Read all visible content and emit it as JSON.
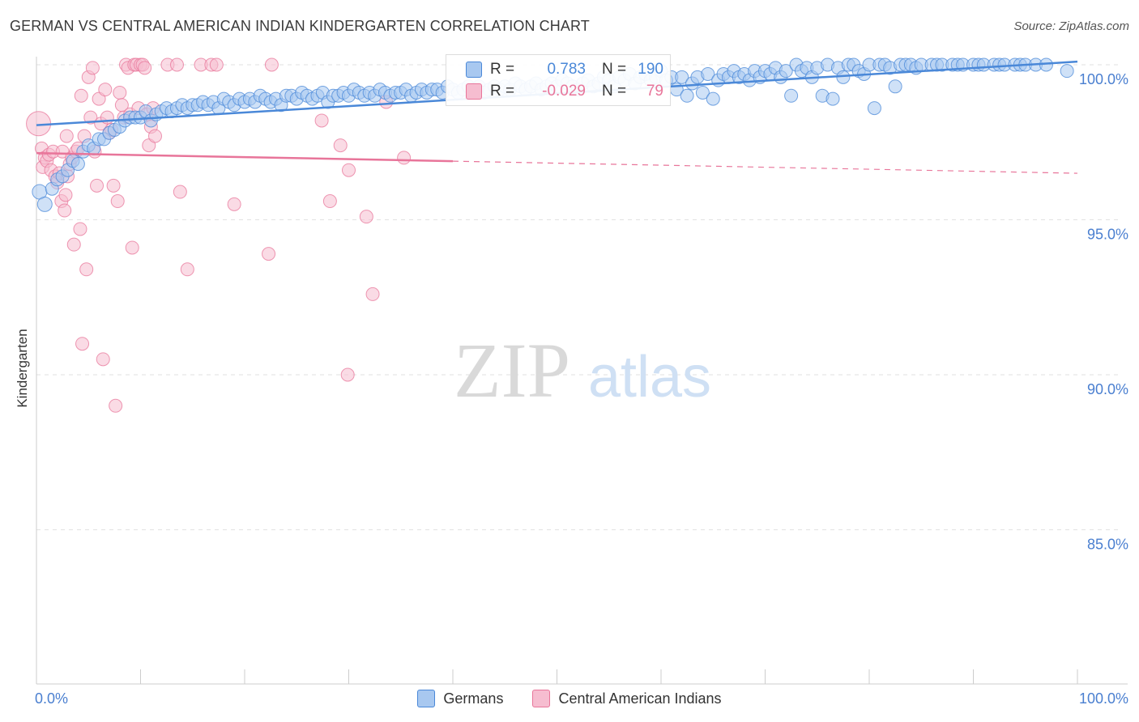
{
  "header": {
    "title": "GERMAN VS CENTRAL AMERICAN INDIAN KINDERGARTEN CORRELATION CHART",
    "source": "Source: ZipAtlas.com"
  },
  "watermark": {
    "zip": "ZIP",
    "atlas": "atlas"
  },
  "colors": {
    "blue": "#4a88d8",
    "blue_fill": "#a8c8f0",
    "pink": "#e8759a",
    "pink_fill": "#f6bdd0",
    "tick_label": "#4a7fd0",
    "grid": "#e2e2e2"
  },
  "stats": {
    "rows": [
      {
        "r_label": "R =",
        "r_value": "0.783",
        "n_label": "N =",
        "n_value": "190",
        "color": "#4a88d8"
      },
      {
        "r_label": "R =",
        "r_value": "-0.029",
        "n_label": "N =",
        "n_value": "79",
        "color": "#e8759a"
      }
    ]
  },
  "legend": {
    "items": [
      {
        "label": "Germans",
        "color": "#4a88d8"
      },
      {
        "label": "Central American Indians",
        "color": "#e8759a"
      }
    ]
  },
  "chart_data": {
    "type": "scatter",
    "title": "GERMAN VS CENTRAL AMERICAN INDIAN KINDERGARTEN CORRELATION CHART",
    "xlabel": "",
    "ylabel": "Kindergarten",
    "xlim": [
      0,
      100
    ],
    "ylim": [
      80.5,
      100.7
    ],
    "x_tick_labels": [
      "0.0%",
      "100.0%"
    ],
    "y_ticks": [
      100,
      95,
      90,
      85
    ],
    "y_tick_labels": [
      "100.0%",
      "95.0%",
      "90.0%",
      "85.0%"
    ],
    "grid": true,
    "legend_position": "bottom",
    "series": [
      {
        "name": "Germans",
        "color": "#4a88d8",
        "R": 0.783,
        "N": 190,
        "trend": {
          "x": [
            0,
            100
          ],
          "y": [
            98.05,
            100.1
          ],
          "dashed_from": null
        },
        "points": [
          [
            0.3,
            95.9
          ],
          [
            0.8,
            95.5
          ],
          [
            1.5,
            96.0
          ],
          [
            2.0,
            96.3
          ],
          [
            2.5,
            96.4
          ],
          [
            3.0,
            96.6
          ],
          [
            3.5,
            96.9
          ],
          [
            4.0,
            96.8
          ],
          [
            4.5,
            97.2
          ],
          [
            5.0,
            97.4
          ],
          [
            5.5,
            97.3
          ],
          [
            6.0,
            97.6
          ],
          [
            6.5,
            97.6
          ],
          [
            7.0,
            97.8
          ],
          [
            7.5,
            97.9
          ],
          [
            8.0,
            98.0
          ],
          [
            8.5,
            98.2
          ],
          [
            9.0,
            98.3
          ],
          [
            9.5,
            98.3
          ],
          [
            10.0,
            98.3
          ],
          [
            10.5,
            98.5
          ],
          [
            11.0,
            98.2
          ],
          [
            11.5,
            98.4
          ],
          [
            12.0,
            98.5
          ],
          [
            12.5,
            98.6
          ],
          [
            13.0,
            98.5
          ],
          [
            13.5,
            98.6
          ],
          [
            14.0,
            98.7
          ],
          [
            14.5,
            98.6
          ],
          [
            15.0,
            98.7
          ],
          [
            15.5,
            98.7
          ],
          [
            16.0,
            98.8
          ],
          [
            16.5,
            98.7
          ],
          [
            17.0,
            98.8
          ],
          [
            17.5,
            98.6
          ],
          [
            18.0,
            98.9
          ],
          [
            18.5,
            98.8
          ],
          [
            19.0,
            98.7
          ],
          [
            19.5,
            98.9
          ],
          [
            20.0,
            98.8
          ],
          [
            20.5,
            98.9
          ],
          [
            21.0,
            98.8
          ],
          [
            21.5,
            99.0
          ],
          [
            22.0,
            98.9
          ],
          [
            22.5,
            98.8
          ],
          [
            23.0,
            98.9
          ],
          [
            23.5,
            98.7
          ],
          [
            24.0,
            99.0
          ],
          [
            24.5,
            99.0
          ],
          [
            25.0,
            98.9
          ],
          [
            25.5,
            99.1
          ],
          [
            26.0,
            99.0
          ],
          [
            26.5,
            98.9
          ],
          [
            27.0,
            99.0
          ],
          [
            27.5,
            99.1
          ],
          [
            28.0,
            98.8
          ],
          [
            28.5,
            99.0
          ],
          [
            29.0,
            99.0
          ],
          [
            29.5,
            99.1
          ],
          [
            30.0,
            99.0
          ],
          [
            30.5,
            99.2
          ],
          [
            31.0,
            99.1
          ],
          [
            31.5,
            99.0
          ],
          [
            32.0,
            99.1
          ],
          [
            32.5,
            99.0
          ],
          [
            33.0,
            99.2
          ],
          [
            33.5,
            99.1
          ],
          [
            34.0,
            99.0
          ],
          [
            34.5,
            99.1
          ],
          [
            35.0,
            99.1
          ],
          [
            35.5,
            99.2
          ],
          [
            36.0,
            99.0
          ],
          [
            36.5,
            99.1
          ],
          [
            37.0,
            99.2
          ],
          [
            37.5,
            99.1
          ],
          [
            38.0,
            99.2
          ],
          [
            38.5,
            99.2
          ],
          [
            39.0,
            99.1
          ],
          [
            39.5,
            99.3
          ],
          [
            40.0,
            99.2
          ],
          [
            40.5,
            99.1
          ],
          [
            41.0,
            99.2
          ],
          [
            41.5,
            99.3
          ],
          [
            42.0,
            99.2
          ],
          [
            42.5,
            99.3
          ],
          [
            43.0,
            99.1
          ],
          [
            43.5,
            99.2
          ],
          [
            44.0,
            99.3
          ],
          [
            44.5,
            99.2
          ],
          [
            45.0,
            99.3
          ],
          [
            45.5,
            99.2
          ],
          [
            46.0,
            99.4
          ],
          [
            46.5,
            99.3
          ],
          [
            47.0,
            99.2
          ],
          [
            47.5,
            99.3
          ],
          [
            48.0,
            99.4
          ],
          [
            48.5,
            99.2
          ],
          [
            49.0,
            99.3
          ],
          [
            49.5,
            99.4
          ],
          [
            50.0,
            99.3
          ],
          [
            50.5,
            99.5
          ],
          [
            51.0,
            99.4
          ],
          [
            51.5,
            99.3
          ],
          [
            52.0,
            99.2
          ],
          [
            52.5,
            99.4
          ],
          [
            53.0,
            99.5
          ],
          [
            53.5,
            99.3
          ],
          [
            54.0,
            99.4
          ],
          [
            54.5,
            99.6
          ],
          [
            55.0,
            99.5
          ],
          [
            55.5,
            99.3
          ],
          [
            56.0,
            99.6
          ],
          [
            56.5,
            99.5
          ],
          [
            57.0,
            99.7
          ],
          [
            57.5,
            99.4
          ],
          [
            58.0,
            99.6
          ],
          [
            58.5,
            99.7
          ],
          [
            59.0,
            99.5
          ],
          [
            59.5,
            99.6
          ],
          [
            60.0,
            99.8
          ],
          [
            60.5,
            99.5
          ],
          [
            61.0,
            99.6
          ],
          [
            61.5,
            99.2
          ],
          [
            62.0,
            99.6
          ],
          [
            62.5,
            99.0
          ],
          [
            63.0,
            99.4
          ],
          [
            63.5,
            99.6
          ],
          [
            64.0,
            99.1
          ],
          [
            64.5,
            99.7
          ],
          [
            65.0,
            98.9
          ],
          [
            65.5,
            99.5
          ],
          [
            66.0,
            99.7
          ],
          [
            66.5,
            99.6
          ],
          [
            67.0,
            99.8
          ],
          [
            67.5,
            99.6
          ],
          [
            68.0,
            99.7
          ],
          [
            68.5,
            99.5
          ],
          [
            69.0,
            99.8
          ],
          [
            69.5,
            99.6
          ],
          [
            70.0,
            99.8
          ],
          [
            70.5,
            99.7
          ],
          [
            71.0,
            99.9
          ],
          [
            71.5,
            99.6
          ],
          [
            72.0,
            99.8
          ],
          [
            72.5,
            99.0
          ],
          [
            73.0,
            100.0
          ],
          [
            73.5,
            99.8
          ],
          [
            74.0,
            99.9
          ],
          [
            74.5,
            99.6
          ],
          [
            75.0,
            99.9
          ],
          [
            75.5,
            99.0
          ],
          [
            76.0,
            100.0
          ],
          [
            76.5,
            98.9
          ],
          [
            77.0,
            99.9
          ],
          [
            77.5,
            99.6
          ],
          [
            78.0,
            100.0
          ],
          [
            78.5,
            100.0
          ],
          [
            79.0,
            99.8
          ],
          [
            79.5,
            99.7
          ],
          [
            80.0,
            100.0
          ],
          [
            80.5,
            98.6
          ],
          [
            81.0,
            100.0
          ],
          [
            81.5,
            100.0
          ],
          [
            82.0,
            99.9
          ],
          [
            82.5,
            99.3
          ],
          [
            83.0,
            100.0
          ],
          [
            83.5,
            100.0
          ],
          [
            84.0,
            100.0
          ],
          [
            84.5,
            99.9
          ],
          [
            85.0,
            100.0
          ],
          [
            86.0,
            100.0
          ],
          [
            86.5,
            100.0
          ],
          [
            87.0,
            100.0
          ],
          [
            88.0,
            100.0
          ],
          [
            88.5,
            100.0
          ],
          [
            89.0,
            100.0
          ],
          [
            90.0,
            100.0
          ],
          [
            90.5,
            100.0
          ],
          [
            91.0,
            100.0
          ],
          [
            92.0,
            100.0
          ],
          [
            92.5,
            100.0
          ],
          [
            93.0,
            100.0
          ],
          [
            94.0,
            100.0
          ],
          [
            94.5,
            100.0
          ],
          [
            95.0,
            100.0
          ],
          [
            96.0,
            100.0
          ],
          [
            97.0,
            100.0
          ],
          [
            99.0,
            99.8
          ]
        ]
      },
      {
        "name": "Central American Indians",
        "color": "#e8759a",
        "R": -0.029,
        "N": 79,
        "trend": {
          "x": [
            0,
            100
          ],
          "y": [
            97.15,
            96.5
          ],
          "solid_until": 40
        },
        "points": [
          [
            0.2,
            98.1
          ],
          [
            0.5,
            97.3
          ],
          [
            0.6,
            96.7
          ],
          [
            0.8,
            97.0
          ],
          [
            1.0,
            96.9
          ],
          [
            1.2,
            97.1
          ],
          [
            1.4,
            96.6
          ],
          [
            1.6,
            97.2
          ],
          [
            1.8,
            96.4
          ],
          [
            2.0,
            96.2
          ],
          [
            2.2,
            96.5
          ],
          [
            2.4,
            95.6
          ],
          [
            2.5,
            97.2
          ],
          [
            2.7,
            95.3
          ],
          [
            2.8,
            95.8
          ],
          [
            2.9,
            97.7
          ],
          [
            3.0,
            96.4
          ],
          [
            3.2,
            96.8
          ],
          [
            3.4,
            97.0
          ],
          [
            3.6,
            94.2
          ],
          [
            3.8,
            97.2
          ],
          [
            4.0,
            97.3
          ],
          [
            4.2,
            94.7
          ],
          [
            4.3,
            99.0
          ],
          [
            4.4,
            91.0
          ],
          [
            4.6,
            97.7
          ],
          [
            4.8,
            93.4
          ],
          [
            5.0,
            99.6
          ],
          [
            5.2,
            98.3
          ],
          [
            5.4,
            99.9
          ],
          [
            5.6,
            97.2
          ],
          [
            5.8,
            96.1
          ],
          [
            6.0,
            98.9
          ],
          [
            6.2,
            98.1
          ],
          [
            6.4,
            90.5
          ],
          [
            6.6,
            99.2
          ],
          [
            6.8,
            98.3
          ],
          [
            7.0,
            97.8
          ],
          [
            7.2,
            97.9
          ],
          [
            7.4,
            96.1
          ],
          [
            7.6,
            89.0
          ],
          [
            7.8,
            95.6
          ],
          [
            8.0,
            99.1
          ],
          [
            8.2,
            98.7
          ],
          [
            8.4,
            98.3
          ],
          [
            8.6,
            100.0
          ],
          [
            8.8,
            99.9
          ],
          [
            9.0,
            98.4
          ],
          [
            9.2,
            94.1
          ],
          [
            9.4,
            100.0
          ],
          [
            9.6,
            100.0
          ],
          [
            9.8,
            98.6
          ],
          [
            10.0,
            100.0
          ],
          [
            10.2,
            100.0
          ],
          [
            10.4,
            99.9
          ],
          [
            10.6,
            98.4
          ],
          [
            10.8,
            97.4
          ],
          [
            11.0,
            98.0
          ],
          [
            11.2,
            98.6
          ],
          [
            11.4,
            97.7
          ],
          [
            12.6,
            100.0
          ],
          [
            13.5,
            100.0
          ],
          [
            13.8,
            95.9
          ],
          [
            14.5,
            93.4
          ],
          [
            15.8,
            100.0
          ],
          [
            16.8,
            100.0
          ],
          [
            17.3,
            100.0
          ],
          [
            19.0,
            95.5
          ],
          [
            22.3,
            93.9
          ],
          [
            22.6,
            100.0
          ],
          [
            27.4,
            98.2
          ],
          [
            28.2,
            95.6
          ],
          [
            29.2,
            97.4
          ],
          [
            29.9,
            90.0
          ],
          [
            30.0,
            96.6
          ],
          [
            31.7,
            95.1
          ],
          [
            32.3,
            92.6
          ],
          [
            33.6,
            98.8
          ],
          [
            35.3,
            97.0
          ]
        ]
      }
    ]
  }
}
